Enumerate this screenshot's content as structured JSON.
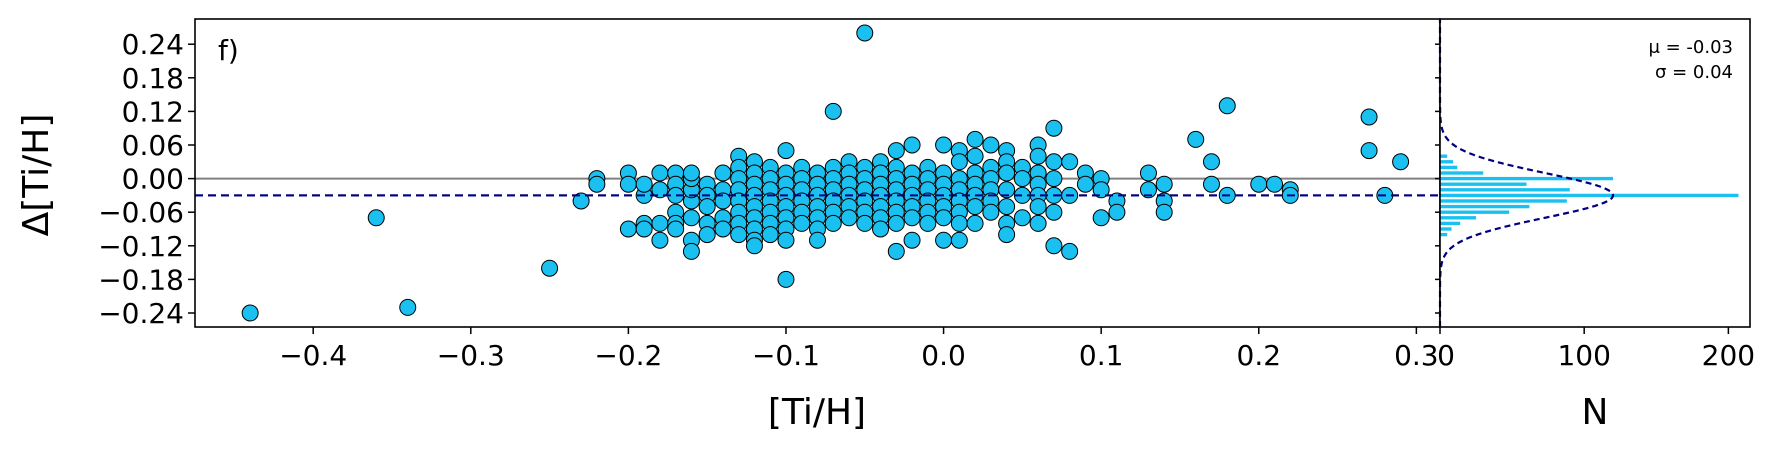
{
  "chart_data": [
    {
      "type": "scatter",
      "panel_label": "f)",
      "xlabel": "[Ti/H]",
      "ylabel": "Δ[Ti/H]",
      "xlim": [
        -0.475,
        0.315
      ],
      "ylim": [
        -0.265,
        0.285
      ],
      "xticks": [
        -0.4,
        -0.3,
        -0.2,
        -0.1,
        0.0,
        0.1,
        0.2,
        0.3
      ],
      "xtick_labels": [
        "−0.4",
        "−0.3",
        "−0.2",
        "−0.1",
        "0.0",
        "0.1",
        "0.2",
        "0.3"
      ],
      "yticks": [
        0.24,
        0.18,
        0.12,
        0.06,
        0.0,
        -0.06,
        -0.12,
        -0.18,
        -0.24
      ],
      "ytick_labels": [
        "0.24",
        "0.18",
        "0.12",
        "0.06",
        "0.00",
        "−0.06",
        "−0.12",
        "−0.18",
        "−0.24"
      ],
      "reference_lines": [
        {
          "y": 0.0,
          "style": "solid",
          "color": "#808080"
        },
        {
          "y": -0.03,
          "style": "dashed",
          "color": "#000080"
        }
      ],
      "marker_color": "#1ac0f0",
      "marker_edge": "#000000",
      "points": [
        [
          -0.44,
          -0.24
        ],
        [
          -0.36,
          -0.07
        ],
        [
          -0.34,
          -0.23
        ],
        [
          -0.25,
          -0.16
        ],
        [
          -0.23,
          -0.04
        ],
        [
          -0.22,
          0.0
        ],
        [
          -0.22,
          -0.01
        ],
        [
          -0.2,
          0.01
        ],
        [
          -0.2,
          -0.01
        ],
        [
          -0.2,
          -0.09
        ],
        [
          -0.19,
          -0.08
        ],
        [
          -0.19,
          -0.09
        ],
        [
          -0.19,
          -0.03
        ],
        [
          -0.19,
          -0.01
        ],
        [
          -0.18,
          0.01
        ],
        [
          -0.18,
          -0.02
        ],
        [
          -0.18,
          -0.08
        ],
        [
          -0.18,
          -0.11
        ],
        [
          -0.17,
          0.01
        ],
        [
          -0.17,
          -0.01
        ],
        [
          -0.17,
          -0.03
        ],
        [
          -0.17,
          -0.06
        ],
        [
          -0.17,
          -0.08
        ],
        [
          -0.17,
          -0.09
        ],
        [
          -0.16,
          -0.11
        ],
        [
          -0.16,
          -0.13
        ],
        [
          -0.16,
          -0.07
        ],
        [
          -0.16,
          -0.04
        ],
        [
          -0.16,
          -0.02
        ],
        [
          -0.16,
          0.0
        ],
        [
          -0.16,
          0.01
        ],
        [
          -0.15,
          -0.01
        ],
        [
          -0.15,
          -0.03
        ],
        [
          -0.15,
          -0.05
        ],
        [
          -0.15,
          -0.08
        ],
        [
          -0.15,
          -0.1
        ],
        [
          -0.14,
          0.01
        ],
        [
          -0.14,
          -0.02
        ],
        [
          -0.14,
          -0.04
        ],
        [
          -0.14,
          -0.07
        ],
        [
          -0.14,
          -0.09
        ],
        [
          -0.13,
          0.04
        ],
        [
          -0.13,
          0.02
        ],
        [
          -0.13,
          0.0
        ],
        [
          -0.13,
          -0.02
        ],
        [
          -0.13,
          -0.04
        ],
        [
          -0.13,
          -0.06
        ],
        [
          -0.13,
          -0.08
        ],
        [
          -0.13,
          -0.1
        ],
        [
          -0.12,
          0.03
        ],
        [
          -0.12,
          0.01
        ],
        [
          -0.12,
          -0.01
        ],
        [
          -0.12,
          -0.03
        ],
        [
          -0.12,
          -0.05
        ],
        [
          -0.12,
          -0.07
        ],
        [
          -0.12,
          -0.09
        ],
        [
          -0.12,
          -0.11
        ],
        [
          -0.12,
          -0.12
        ],
        [
          -0.11,
          0.02
        ],
        [
          -0.11,
          0.0
        ],
        [
          -0.11,
          -0.02
        ],
        [
          -0.11,
          -0.04
        ],
        [
          -0.11,
          -0.06
        ],
        [
          -0.11,
          -0.08
        ],
        [
          -0.11,
          -0.1
        ],
        [
          -0.1,
          0.05
        ],
        [
          -0.1,
          0.01
        ],
        [
          -0.1,
          -0.01
        ],
        [
          -0.1,
          -0.03
        ],
        [
          -0.1,
          -0.05
        ],
        [
          -0.1,
          -0.07
        ],
        [
          -0.1,
          -0.09
        ],
        [
          -0.1,
          -0.11
        ],
        [
          -0.1,
          -0.18
        ],
        [
          -0.09,
          0.02
        ],
        [
          -0.09,
          0.0
        ],
        [
          -0.09,
          -0.02
        ],
        [
          -0.09,
          -0.04
        ],
        [
          -0.09,
          -0.06
        ],
        [
          -0.09,
          -0.08
        ],
        [
          -0.08,
          0.01
        ],
        [
          -0.08,
          -0.01
        ],
        [
          -0.08,
          -0.03
        ],
        [
          -0.08,
          -0.05
        ],
        [
          -0.08,
          -0.07
        ],
        [
          -0.08,
          -0.09
        ],
        [
          -0.08,
          -0.11
        ],
        [
          -0.07,
          0.12
        ],
        [
          -0.07,
          0.02
        ],
        [
          -0.07,
          0.0
        ],
        [
          -0.07,
          -0.02
        ],
        [
          -0.07,
          -0.04
        ],
        [
          -0.07,
          -0.06
        ],
        [
          -0.07,
          -0.08
        ],
        [
          -0.06,
          0.03
        ],
        [
          -0.06,
          0.01
        ],
        [
          -0.06,
          -0.01
        ],
        [
          -0.06,
          -0.03
        ],
        [
          -0.06,
          -0.05
        ],
        [
          -0.06,
          -0.07
        ],
        [
          -0.05,
          0.26
        ],
        [
          -0.05,
          0.02
        ],
        [
          -0.05,
          0.0
        ],
        [
          -0.05,
          -0.02
        ],
        [
          -0.05,
          -0.04
        ],
        [
          -0.05,
          -0.06
        ],
        [
          -0.05,
          -0.08
        ],
        [
          -0.04,
          0.03
        ],
        [
          -0.04,
          0.01
        ],
        [
          -0.04,
          -0.01
        ],
        [
          -0.04,
          -0.03
        ],
        [
          -0.04,
          -0.05
        ],
        [
          -0.04,
          -0.07
        ],
        [
          -0.04,
          -0.09
        ],
        [
          -0.03,
          0.05
        ],
        [
          -0.03,
          0.02
        ],
        [
          -0.03,
          0.0
        ],
        [
          -0.03,
          -0.02
        ],
        [
          -0.03,
          -0.04
        ],
        [
          -0.03,
          -0.06
        ],
        [
          -0.03,
          -0.08
        ],
        [
          -0.03,
          -0.13
        ],
        [
          -0.02,
          0.06
        ],
        [
          -0.02,
          0.01
        ],
        [
          -0.02,
          -0.01
        ],
        [
          -0.02,
          -0.03
        ],
        [
          -0.02,
          -0.05
        ],
        [
          -0.02,
          -0.07
        ],
        [
          -0.02,
          -0.11
        ],
        [
          -0.01,
          0.02
        ],
        [
          -0.01,
          0.0
        ],
        [
          -0.01,
          -0.02
        ],
        [
          -0.01,
          -0.04
        ],
        [
          -0.01,
          -0.06
        ],
        [
          -0.01,
          -0.08
        ],
        [
          0.0,
          0.06
        ],
        [
          0.0,
          0.01
        ],
        [
          0.0,
          -0.01
        ],
        [
          0.0,
          -0.03
        ],
        [
          0.0,
          -0.05
        ],
        [
          0.0,
          -0.07
        ],
        [
          0.0,
          -0.11
        ],
        [
          0.01,
          0.05
        ],
        [
          0.01,
          0.03
        ],
        [
          0.01,
          0.0
        ],
        [
          0.01,
          -0.02
        ],
        [
          0.01,
          -0.04
        ],
        [
          0.01,
          -0.06
        ],
        [
          0.01,
          -0.08
        ],
        [
          0.01,
          -0.11
        ],
        [
          0.02,
          0.07
        ],
        [
          0.02,
          0.04
        ],
        [
          0.02,
          0.01
        ],
        [
          0.02,
          -0.01
        ],
        [
          0.02,
          -0.03
        ],
        [
          0.02,
          -0.05
        ],
        [
          0.02,
          -0.08
        ],
        [
          0.03,
          0.06
        ],
        [
          0.03,
          0.02
        ],
        [
          0.03,
          0.0
        ],
        [
          0.03,
          -0.02
        ],
        [
          0.03,
          -0.04
        ],
        [
          0.03,
          -0.06
        ],
        [
          0.04,
          0.05
        ],
        [
          0.04,
          0.03
        ],
        [
          0.04,
          0.01
        ],
        [
          0.04,
          -0.02
        ],
        [
          0.04,
          -0.05
        ],
        [
          0.04,
          -0.08
        ],
        [
          0.04,
          -0.1
        ],
        [
          0.05,
          0.02
        ],
        [
          0.05,
          0.0
        ],
        [
          0.05,
          -0.03
        ],
        [
          0.05,
          -0.07
        ],
        [
          0.06,
          0.06
        ],
        [
          0.06,
          0.04
        ],
        [
          0.06,
          0.01
        ],
        [
          0.06,
          -0.01
        ],
        [
          0.06,
          -0.03
        ],
        [
          0.06,
          -0.05
        ],
        [
          0.06,
          -0.08
        ],
        [
          0.07,
          0.09
        ],
        [
          0.07,
          0.03
        ],
        [
          0.07,
          0.0
        ],
        [
          0.07,
          -0.03
        ],
        [
          0.07,
          -0.06
        ],
        [
          0.07,
          -0.12
        ],
        [
          0.08,
          0.03
        ],
        [
          0.08,
          -0.03
        ],
        [
          0.08,
          -0.13
        ],
        [
          0.09,
          0.01
        ],
        [
          0.09,
          -0.01
        ],
        [
          0.1,
          0.0
        ],
        [
          0.1,
          -0.02
        ],
        [
          0.1,
          -0.07
        ],
        [
          0.11,
          -0.04
        ],
        [
          0.11,
          -0.06
        ],
        [
          0.13,
          0.01
        ],
        [
          0.13,
          -0.02
        ],
        [
          0.14,
          -0.01
        ],
        [
          0.14,
          -0.04
        ],
        [
          0.14,
          -0.06
        ],
        [
          0.16,
          0.07
        ],
        [
          0.17,
          0.03
        ],
        [
          0.17,
          -0.01
        ],
        [
          0.18,
          0.13
        ],
        [
          0.18,
          -0.03
        ],
        [
          0.2,
          -0.01
        ],
        [
          0.21,
          -0.01
        ],
        [
          0.22,
          -0.02
        ],
        [
          0.22,
          -0.03
        ],
        [
          0.27,
          0.11
        ],
        [
          0.27,
          0.05
        ],
        [
          0.28,
          -0.03
        ],
        [
          0.29,
          0.03
        ]
      ]
    },
    {
      "type": "bar",
      "orientation": "horizontal",
      "xlabel": "N",
      "xlim": [
        0,
        215
      ],
      "xticks": [
        0,
        100,
        200
      ],
      "xtick_labels": [
        "0",
        "100",
        "200"
      ],
      "ylim": [
        -0.265,
        0.285
      ],
      "bar_color": "#1ac0f0",
      "bins": [
        -0.1,
        -0.09,
        -0.08,
        -0.07,
        -0.06,
        -0.05,
        -0.04,
        -0.03,
        -0.02,
        -0.01,
        0.0,
        0.01,
        0.02,
        0.03,
        0.04
      ],
      "counts": [
        5,
        8,
        14,
        25,
        48,
        62,
        88,
        207,
        90,
        60,
        120,
        30,
        12,
        9,
        5
      ],
      "fit": {
        "mu": -0.03,
        "sigma": 0.04,
        "peak": 120,
        "color": "#000080",
        "style": "dashed"
      },
      "annotation": {
        "mu_text": "μ = -0.03",
        "sigma_text": "σ = 0.04"
      }
    }
  ]
}
